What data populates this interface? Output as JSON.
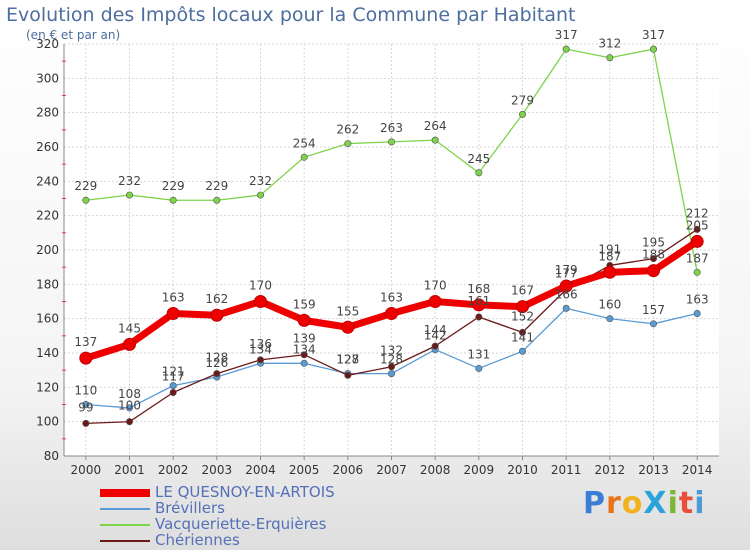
{
  "title": "Evolution des Impôts locaux pour la Commune par Habitant",
  "subtitle": "(en € et par an)",
  "logo": {
    "text": "ProXiti",
    "colors": [
      "#3a7fd5",
      "#e8741a",
      "#f2b21c",
      "#2aa4d8",
      "#7ab834",
      "#e94d3c",
      "#4c9ad8"
    ]
  },
  "chart_data": {
    "type": "line",
    "x": [
      "2000",
      "2001",
      "2002",
      "2003",
      "2004",
      "2005",
      "2006",
      "2007",
      "2008",
      "2009",
      "2010",
      "2011",
      "2012",
      "2013",
      "2014"
    ],
    "ylim": [
      80,
      320
    ],
    "yticks": [
      "80",
      "100",
      "120",
      "140",
      "160",
      "180",
      "200",
      "220",
      "240",
      "260",
      "280",
      "300",
      "320"
    ],
    "grid": true,
    "legend_position": "bottom-left",
    "series": [
      {
        "name": "LE QUESNOY-EN-ARTOIS",
        "color": "#ee0000",
        "values": [
          137,
          145,
          163,
          162,
          170,
          159,
          155,
          163,
          170,
          168,
          167,
          179,
          187,
          188,
          205
        ],
        "labels": [
          "137",
          "145",
          "163",
          "162",
          "170",
          "159",
          "155",
          "163",
          "170",
          "168",
          "167",
          "179",
          "187",
          "188",
          "205"
        ]
      },
      {
        "name": "Brévillers",
        "color": "#5a9bd3",
        "values": [
          110,
          108,
          121,
          126,
          134,
          134,
          128,
          128,
          142,
          131,
          141,
          166,
          160,
          157,
          163
        ],
        "labels": [
          "110",
          "108",
          "121",
          "126",
          "134",
          "134",
          "128",
          "128",
          "142",
          "131",
          "141",
          "166",
          "160",
          "157",
          "163"
        ]
      },
      {
        "name": "Vacqueriette-Erquières",
        "color": "#7dd34a",
        "values": [
          229,
          232,
          229,
          229,
          232,
          254,
          262,
          263,
          264,
          245,
          279,
          317,
          312,
          317,
          187
        ],
        "labels": [
          "229",
          "232",
          "229",
          "229",
          "232",
          "254",
          "262",
          "263",
          "264",
          "245",
          "279",
          "317",
          "312",
          "317",
          "187"
        ]
      },
      {
        "name": "Chériennes",
        "color": "#6b1a1a",
        "values": [
          99,
          100,
          117,
          128,
          136,
          139,
          127,
          132,
          144,
          161,
          152,
          177,
          191,
          195,
          212
        ],
        "labels": [
          "99",
          "100",
          "117",
          "128",
          "136",
          "139",
          "127",
          "132",
          "144",
          "161",
          "152",
          "177",
          "191",
          "195",
          "212"
        ]
      }
    ]
  }
}
